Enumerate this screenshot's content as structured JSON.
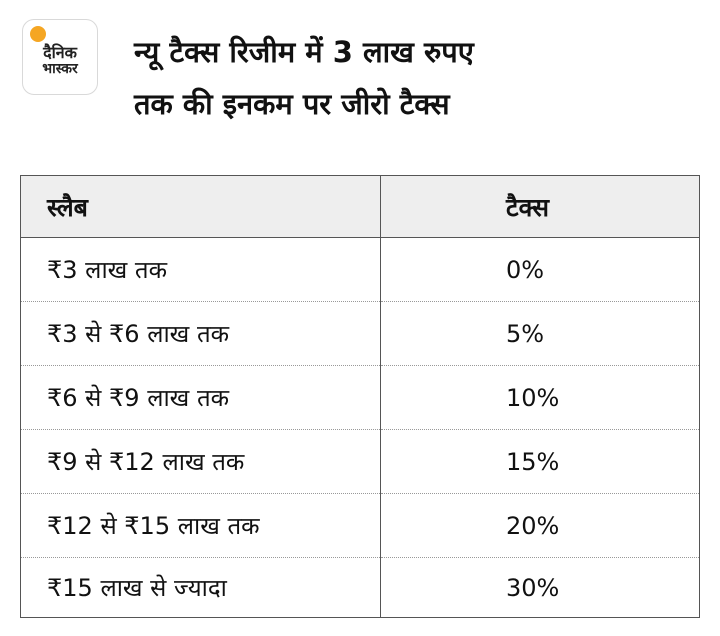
{
  "logo": {
    "line1": "दैनिक",
    "line2": "भास्कर",
    "accent_color": "#f5a623"
  },
  "title": {
    "line1": "न्यू टैक्स रिजीम में 3 लाख रुपए",
    "line2": "तक की इनकम पर जीरो टैक्स"
  },
  "table": {
    "headers": [
      "स्लैब",
      "टैक्स"
    ],
    "rows": [
      {
        "slab": "₹3 लाख तक",
        "tax": "0%"
      },
      {
        "slab": "₹3 से ₹6 लाख तक",
        "tax": "5%"
      },
      {
        "slab": "₹6 से ₹9 लाख तक",
        "tax": "10%"
      },
      {
        "slab": "₹9 से ₹12 लाख तक",
        "tax": "15%"
      },
      {
        "slab": "₹12 से ₹15 लाख तक",
        "tax": "20%"
      },
      {
        "slab": "₹15 लाख से ज्यादा",
        "tax": "30%"
      }
    ]
  }
}
